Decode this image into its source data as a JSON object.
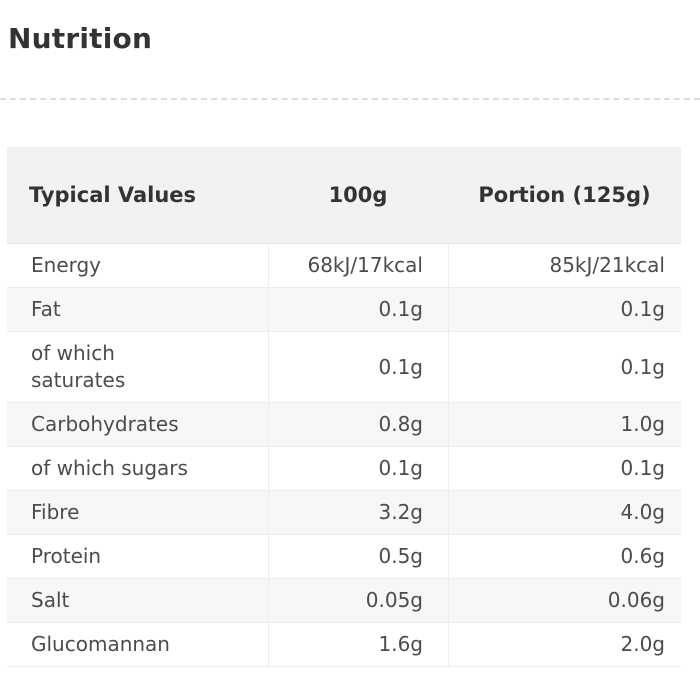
{
  "page": {
    "title": "Nutrition"
  },
  "table": {
    "headers": [
      "Typical Values",
      "100g",
      "Portion (125g)"
    ],
    "rows": [
      {
        "label": "Energy",
        "per100g": "68kJ/17kcal",
        "portion": "85kJ/21kcal"
      },
      {
        "label": "Fat",
        "per100g": "0.1g",
        "portion": "0.1g"
      },
      {
        "label": "of which\nsaturates",
        "per100g": "0.1g",
        "portion": "0.1g"
      },
      {
        "label": "Carbohydrates",
        "per100g": "0.8g",
        "portion": "1.0g"
      },
      {
        "label": "of which sugars",
        "per100g": "0.1g",
        "portion": "0.1g"
      },
      {
        "label": "Fibre",
        "per100g": "3.2g",
        "portion": "4.0g"
      },
      {
        "label": "Protein",
        "per100g": "0.5g",
        "portion": "0.6g"
      },
      {
        "label": "Salt",
        "per100g": "0.05g",
        "portion": "0.06g"
      },
      {
        "label": "Glucomannan",
        "per100g": "1.6g",
        "portion": "2.0g"
      }
    ]
  },
  "colors": {
    "header-bg": "#f2f2f2",
    "stripe-bg": "#f7f7f7",
    "border": "#ededed",
    "border-strong": "#e4e4e4",
    "divider": "#dcdcdc",
    "text": "#4c4c4c",
    "heading-text": "#333333"
  }
}
